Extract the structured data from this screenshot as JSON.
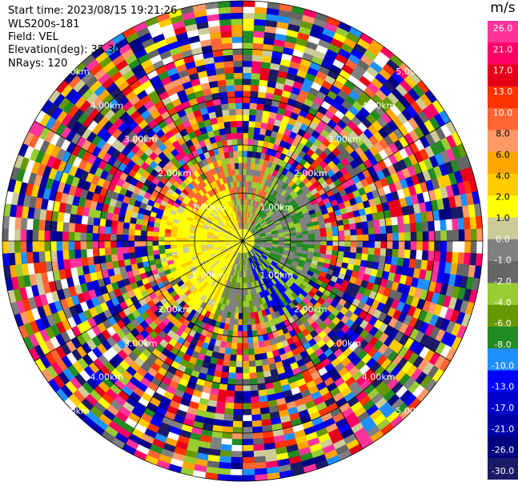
{
  "header": {
    "start_time": "Start time: 2023/08/15 19:21:26",
    "instrument": "WLS200s-181",
    "field": "Field: VEL",
    "elevation": "Elevation(deg): 35.30",
    "nrays": "NRays: 120"
  },
  "chart_data": {
    "type": "heatmap",
    "projection": "polar-ppi",
    "field": "VEL",
    "units": "m/s",
    "n_rays": 120,
    "range_ring_labels": [
      "1.00km",
      "2.00km",
      "3.00km",
      "4.00km",
      "5.00km"
    ],
    "colorbar": {
      "label": "m/s",
      "ticks": [
        "26.0",
        "21.0",
        "17.0",
        "13.0",
        "10.0",
        "8.0",
        "6.0",
        "4.0",
        "2.0",
        "1.0",
        "0.0",
        "-1.0",
        "-2.0",
        "-4.0",
        "-6.0",
        "-8.0",
        "-10.0",
        "-13.0",
        "-17.0",
        "-21.0",
        "-26.0",
        "-30.0"
      ],
      "colors": [
        "#ff3399",
        "#ff0066",
        "#e6001a",
        "#ff3300",
        "#ff6633",
        "#ff9966",
        "#ffa500",
        "#ffcc00",
        "#ffff00",
        "#cccc99",
        "#808080",
        "#666666",
        "#99cc33",
        "#669900",
        "#228b22",
        "#1e90ff",
        "#0000ff",
        "#0000cc",
        "#0000aa",
        "#000080",
        "#1a1a66"
      ],
      "vmin": -30,
      "vmax": 30
    }
  }
}
